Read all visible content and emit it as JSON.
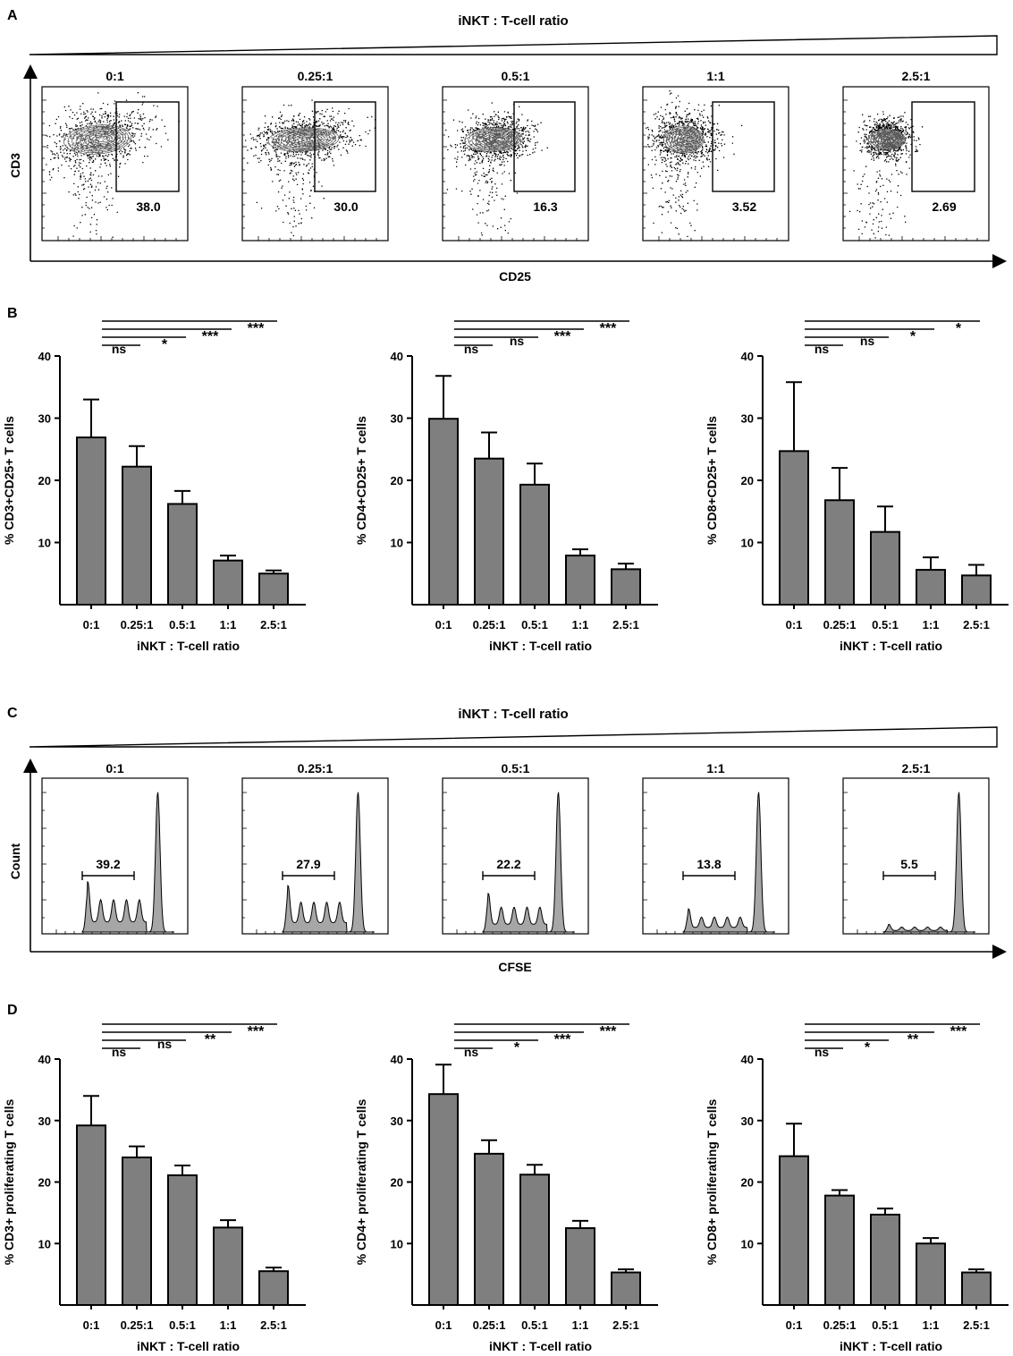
{
  "colors": {
    "bar_fill": "#7f7f7f",
    "ink": "#000000",
    "hist_fill": "#a6a6a6"
  },
  "panel_a": {
    "letter": "A",
    "ratio_title": "iNKT : T-cell ratio",
    "ratios": [
      "0:1",
      "0.25:1",
      "0.5:1",
      "1:1",
      "2.5:1"
    ],
    "gate_values": [
      "38.0",
      "30.0",
      "16.3",
      "3.52",
      "2.69"
    ],
    "y_axis_label": "CD3",
    "x_axis_label": "CD25"
  },
  "panel_c": {
    "letter": "C",
    "ratio_title": "iNKT : T-cell ratio",
    "ratios": [
      "0:1",
      "0.25:1",
      "0.5:1",
      "1:1",
      "2.5:1"
    ],
    "gate_values": [
      "39.2",
      "27.9",
      "22.2",
      "13.8",
      "5.5"
    ],
    "y_axis_label": "Count",
    "x_axis_label": "CFSE"
  },
  "panel_b_letter": "B",
  "panel_d_letter": "D",
  "chart_data": [
    {
      "type": "bar",
      "panel": "B",
      "categories": [
        "0:1",
        "0.25:1",
        "0.5:1",
        "1:1",
        "2.5:1"
      ],
      "values": [
        26.9,
        22.2,
        16.2,
        7.1,
        5.0
      ],
      "errors": [
        6.1,
        3.3,
        2.1,
        0.8,
        0.5
      ],
      "ylabel": "% CD3+CD25+ T cells",
      "xlabel": "iNKT : T-cell ratio",
      "ylim": [
        0,
        40
      ],
      "yticks": [
        "10",
        "20",
        "30",
        "40"
      ],
      "significance": [
        "ns",
        "*",
        "***",
        "***"
      ]
    },
    {
      "type": "bar",
      "panel": "B",
      "categories": [
        "0:1",
        "0.25:1",
        "0.5:1",
        "1:1",
        "2.5:1"
      ],
      "values": [
        29.9,
        23.5,
        19.3,
        7.9,
        5.7
      ],
      "errors": [
        6.9,
        4.2,
        3.4,
        1.0,
        0.9
      ],
      "ylabel": "% CD4+CD25+ T cells",
      "xlabel": "iNKT : T-cell ratio",
      "ylim": [
        0,
        40
      ],
      "yticks": [
        "10",
        "20",
        "30",
        "40"
      ],
      "significance": [
        "ns",
        "ns",
        "***",
        "***"
      ]
    },
    {
      "type": "bar",
      "panel": "B",
      "categories": [
        "0:1",
        "0.25:1",
        "0.5:1",
        "1:1",
        "2.5:1"
      ],
      "values": [
        24.7,
        16.8,
        11.7,
        5.6,
        4.7
      ],
      "errors": [
        11.1,
        5.2,
        4.1,
        2.0,
        1.7
      ],
      "ylabel": "% CD8+CD25+ T cells",
      "xlabel": "iNKT : T-cell ratio",
      "ylim": [
        0,
        40
      ],
      "yticks": [
        "10",
        "20",
        "30",
        "40"
      ],
      "significance": [
        "ns",
        "ns",
        "*",
        "*"
      ]
    },
    {
      "type": "bar",
      "panel": "D",
      "categories": [
        "0:1",
        "0.25:1",
        "0.5:1",
        "1:1",
        "2.5:1"
      ],
      "values": [
        29.2,
        24.0,
        21.1,
        12.6,
        5.5
      ],
      "errors": [
        4.8,
        1.8,
        1.6,
        1.2,
        0.6
      ],
      "ylabel": "% CD3+ proliferating T cells",
      "xlabel": "iNKT : T-cell ratio",
      "ylim": [
        0,
        40
      ],
      "yticks": [
        "10",
        "20",
        "30",
        "40"
      ],
      "significance": [
        "ns",
        "ns",
        "**",
        "***"
      ]
    },
    {
      "type": "bar",
      "panel": "D",
      "categories": [
        "0:1",
        "0.25:1",
        "0.5:1",
        "1:1",
        "2.5:1"
      ],
      "values": [
        34.3,
        24.6,
        21.2,
        12.5,
        5.3
      ],
      "errors": [
        4.8,
        2.2,
        1.6,
        1.2,
        0.5
      ],
      "ylabel": "% CD4+ proliferating T cells",
      "xlabel": "iNKT : T-cell ratio",
      "ylim": [
        0,
        40
      ],
      "yticks": [
        "10",
        "20",
        "30",
        "40"
      ],
      "significance": [
        "ns",
        "*",
        "***",
        "***"
      ]
    },
    {
      "type": "bar",
      "panel": "D",
      "categories": [
        "0:1",
        "0.25:1",
        "0.5:1",
        "1:1",
        "2.5:1"
      ],
      "values": [
        24.2,
        17.8,
        14.7,
        10.0,
        5.3
      ],
      "errors": [
        5.3,
        0.9,
        1.0,
        0.9,
        0.5
      ],
      "ylabel": "% CD8+ proliferating T cells",
      "xlabel": "iNKT : T-cell ratio",
      "ylim": [
        0,
        40
      ],
      "yticks": [
        "10",
        "20",
        "30",
        "40"
      ],
      "significance": [
        "ns",
        "*",
        "**",
        "***"
      ]
    }
  ]
}
